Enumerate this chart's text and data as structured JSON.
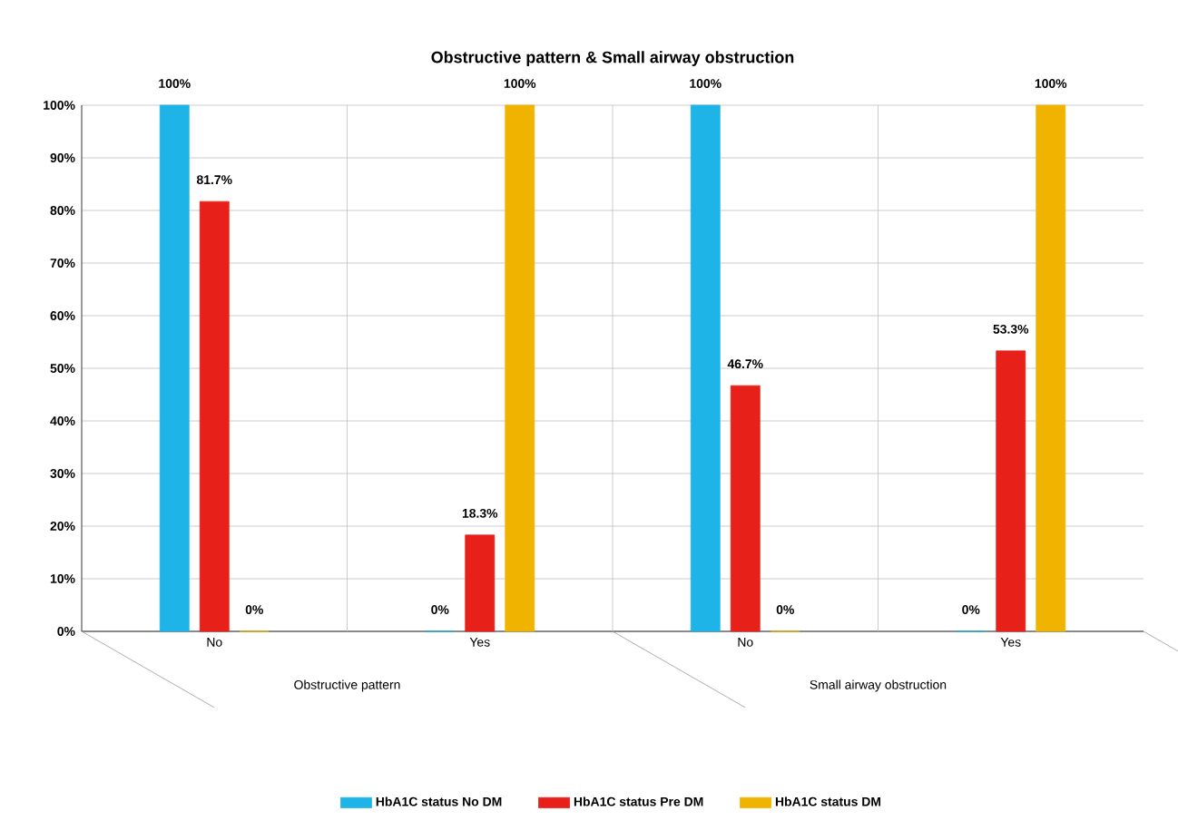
{
  "chart_data": {
    "type": "bar",
    "title": "Obstructive pattern & Small airway obstruction",
    "categories": [
      "No",
      "Yes",
      "No",
      "Yes"
    ],
    "annotations": [
      "Obstructive pattern",
      "Small airway obstruction"
    ],
    "series": [
      {
        "name": "HbA1C status No DM",
        "color": "#1fb4e8",
        "values": [
          100,
          0,
          100,
          0
        ],
        "value_labels": [
          "100%",
          "0%",
          "100%",
          "0%"
        ]
      },
      {
        "name": "HbA1C status Pre DM",
        "color": "#e8201a",
        "values": [
          81.7,
          18.3,
          46.7,
          53.3
        ],
        "value_labels": [
          "81.7%",
          "18.3%",
          "46.7%",
          "53.3%"
        ]
      },
      {
        "name": "HbA1C status DM",
        "color": "#f0b400",
        "values": [
          0,
          100,
          0,
          100
        ],
        "value_labels": [
          "0%",
          "100%",
          "0%",
          "100%"
        ]
      }
    ],
    "ylim": [
      0,
      100
    ],
    "yticks": [
      {
        "value": 0,
        "label": "0%"
      },
      {
        "value": 10,
        "label": "10%"
      },
      {
        "value": 20,
        "label": "20%"
      },
      {
        "value": 30,
        "label": "30%"
      },
      {
        "value": 40,
        "label": "40%"
      },
      {
        "value": 50,
        "label": "50%"
      },
      {
        "value": 60,
        "label": "60%"
      },
      {
        "value": 70,
        "label": "70%"
      },
      {
        "value": 80,
        "label": "80%"
      },
      {
        "value": 90,
        "label": "90%"
      },
      {
        "value": 100,
        "label": "100%"
      }
    ],
    "grid": "y",
    "legend": "bottom"
  }
}
